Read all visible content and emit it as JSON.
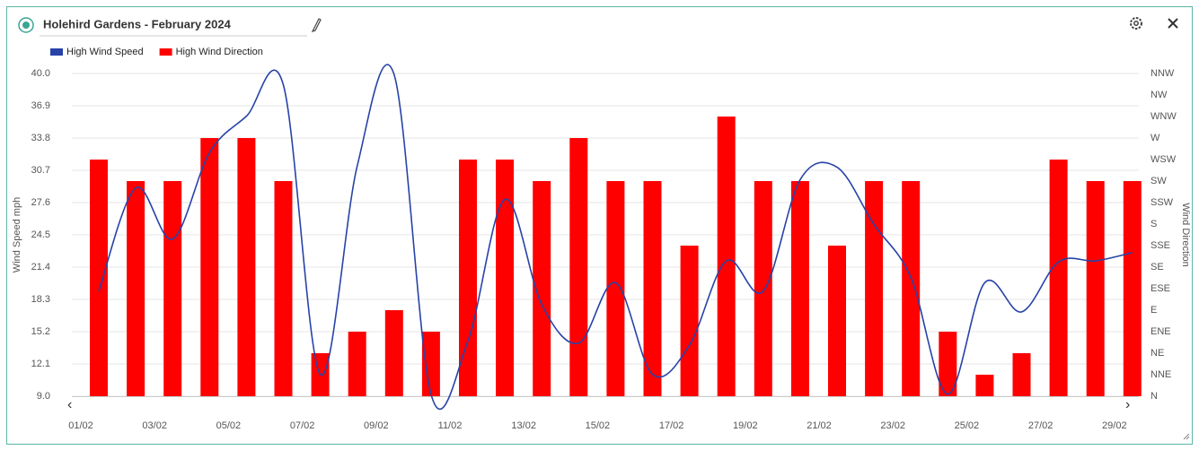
{
  "chart_data": {
    "type": "combo",
    "title": "Holehird Gardens - February 2024",
    "categories": [
      "01/02",
      null,
      "03/02",
      null,
      "05/02",
      null,
      "07/02",
      null,
      "09/02",
      null,
      "11/02",
      null,
      "13/02",
      null,
      "15/02",
      null,
      "17/02",
      null,
      "19/02",
      null,
      "21/02",
      null,
      "23/02",
      null,
      "25/02",
      null,
      "27/02",
      null,
      "29/02"
    ],
    "series": [
      {
        "name": "High Wind Speed",
        "type": "line",
        "color": "#2743a8",
        "values": [
          19.1,
          29.0,
          24.1,
          32.4,
          35.9,
          38.9,
          11.1,
          31.1,
          39.9,
          9.2,
          14.3,
          27.9,
          17.8,
          14.1,
          19.9,
          11.1,
          13.9,
          22.0,
          19.1,
          29.8,
          31.0,
          25.5,
          20.4,
          9.2,
          19.9,
          17.1,
          21.9,
          22.0,
          22.8
        ]
      },
      {
        "name": "High Wind Direction",
        "type": "bar",
        "axis": "y2",
        "color": "#ff0000",
        "values": [
          11,
          10,
          10,
          12,
          12,
          10,
          2,
          3,
          4,
          3,
          11,
          11,
          10,
          12,
          10,
          10,
          7,
          13,
          10,
          10,
          7,
          10,
          10,
          3,
          1,
          2,
          11,
          10,
          10
        ]
      }
    ],
    "y_label": "Wind Speed mph",
    "y2_label": "Wind Direction",
    "ylim": [
      9,
      40
    ],
    "yticks": [
      {
        "value": 9,
        "label": "9.0"
      },
      12.1,
      15.2,
      18.3,
      21.4,
      24.5,
      27.6,
      30.7,
      33.8,
      36.9,
      {
        "value": 40,
        "label": "40.0"
      }
    ],
    "y2lim": [
      0,
      15
    ],
    "y2ticks": [
      {
        "value": 0,
        "label": "N"
      },
      {
        "value": 1,
        "label": "NNE"
      },
      {
        "value": 2,
        "label": "NE"
      },
      {
        "value": 3,
        "label": "ENE"
      },
      {
        "value": 4,
        "label": "E"
      },
      {
        "value": 5,
        "label": "ESE"
      },
      {
        "value": 6,
        "label": "SE"
      },
      {
        "value": 7,
        "label": "SSE"
      },
      {
        "value": 8,
        "label": "S"
      },
      {
        "value": 9,
        "label": "SSW"
      },
      {
        "value": 10,
        "label": "SW"
      },
      {
        "value": 11,
        "label": "WSW"
      },
      {
        "value": 12,
        "label": "W"
      },
      {
        "value": 13,
        "label": "WNW"
      },
      {
        "value": 14,
        "label": "NW"
      },
      {
        "value": 15,
        "label": "NNW"
      }
    ],
    "grid": true,
    "legend": "top-left"
  }
}
